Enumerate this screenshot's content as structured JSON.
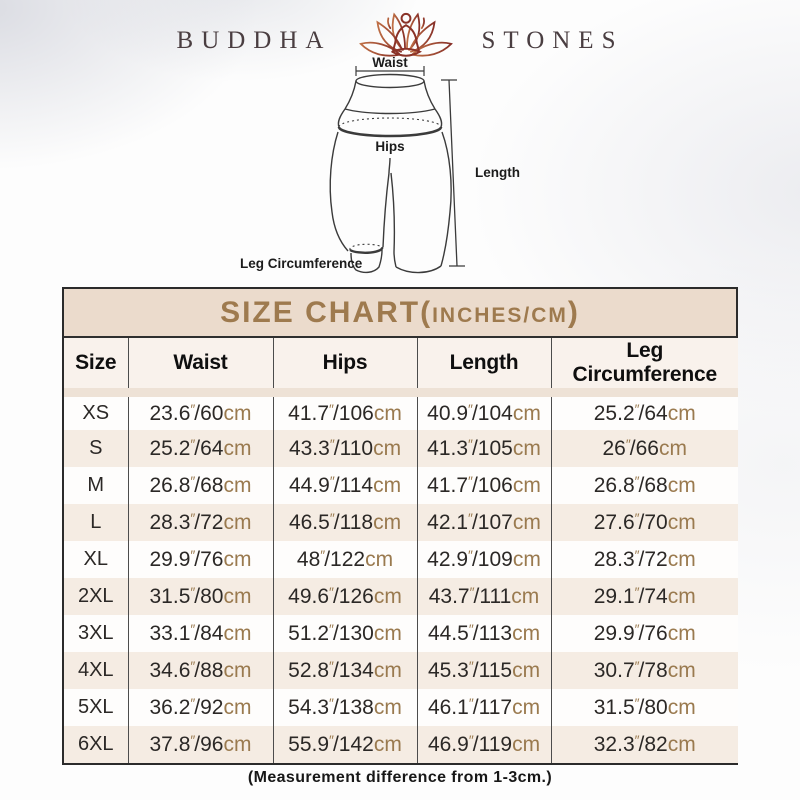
{
  "brand": {
    "left": "BUDDHA",
    "right": "STONES",
    "icon": "lotus-meditation"
  },
  "diagram": {
    "waist_label": "Waist",
    "hips_label": "Hips",
    "length_label": "Length",
    "leg_label": "Leg Circumference"
  },
  "chart_data": {
    "type": "table",
    "title": "SIZE CHART(INCHES/CM)",
    "title_display": {
      "main": "SIZE CHART(",
      "small": "INCHES/CM",
      "end": ")"
    },
    "columns": [
      "Size",
      "Waist",
      "Hips",
      "Length",
      "Leg Circumference"
    ],
    "units": {
      "inch_mark": "″",
      "separator": "/",
      "cm": "cm"
    },
    "rows": [
      {
        "size": "XS",
        "waist": [
          "23.6",
          "60"
        ],
        "hips": [
          "41.7",
          "106"
        ],
        "length": [
          "40.9",
          "104"
        ],
        "leg": [
          "25.2",
          "64"
        ]
      },
      {
        "size": "S",
        "waist": [
          "25.2",
          "64"
        ],
        "hips": [
          "43.3",
          "110"
        ],
        "length": [
          "41.3",
          "105"
        ],
        "leg": [
          "26",
          "66"
        ]
      },
      {
        "size": "M",
        "waist": [
          "26.8",
          "68"
        ],
        "hips": [
          "44.9",
          "114"
        ],
        "length": [
          "41.7",
          "106"
        ],
        "leg": [
          "26.8",
          "68"
        ]
      },
      {
        "size": "L",
        "waist": [
          "28.3",
          "72"
        ],
        "hips": [
          "46.5",
          "118"
        ],
        "length": [
          "42.1",
          "107"
        ],
        "leg": [
          "27.6",
          "70"
        ]
      },
      {
        "size": "XL",
        "waist": [
          "29.9",
          "76"
        ],
        "hips": [
          "48",
          "122"
        ],
        "length": [
          "42.9",
          "109"
        ],
        "leg": [
          "28.3",
          "72"
        ]
      },
      {
        "size": "2XL",
        "waist": [
          "31.5",
          "80"
        ],
        "hips": [
          "49.6",
          "126"
        ],
        "length": [
          "43.7",
          "111"
        ],
        "leg": [
          "29.1",
          "74"
        ]
      },
      {
        "size": "3XL",
        "waist": [
          "33.1",
          "84"
        ],
        "hips": [
          "51.2",
          "130"
        ],
        "length": [
          "44.5",
          "113"
        ],
        "leg": [
          "29.9",
          "76"
        ]
      },
      {
        "size": "4XL",
        "waist": [
          "34.6",
          "88"
        ],
        "hips": [
          "52.8",
          "134"
        ],
        "length": [
          "45.3",
          "115"
        ],
        "leg": [
          "30.7",
          "78"
        ]
      },
      {
        "size": "5XL",
        "waist": [
          "36.2",
          "92"
        ],
        "hips": [
          "54.3",
          "138"
        ],
        "length": [
          "46.1",
          "117"
        ],
        "leg": [
          "31.5",
          "80"
        ]
      },
      {
        "size": "6XL",
        "waist": [
          "37.8",
          "96"
        ],
        "hips": [
          "55.9",
          "142"
        ],
        "length": [
          "46.9",
          "119"
        ],
        "leg": [
          "32.3",
          "82"
        ]
      }
    ]
  },
  "note": "(Measurement difference from 1-3cm.)",
  "colors": {
    "title_text": "#9e7a4e",
    "band_bg": "#ebdbcc",
    "alt_row_bg": "#f5ece3",
    "unit_text": "#9a7a4f",
    "lotus_light": "#bf6f45",
    "lotus_dark": "#872f27"
  }
}
